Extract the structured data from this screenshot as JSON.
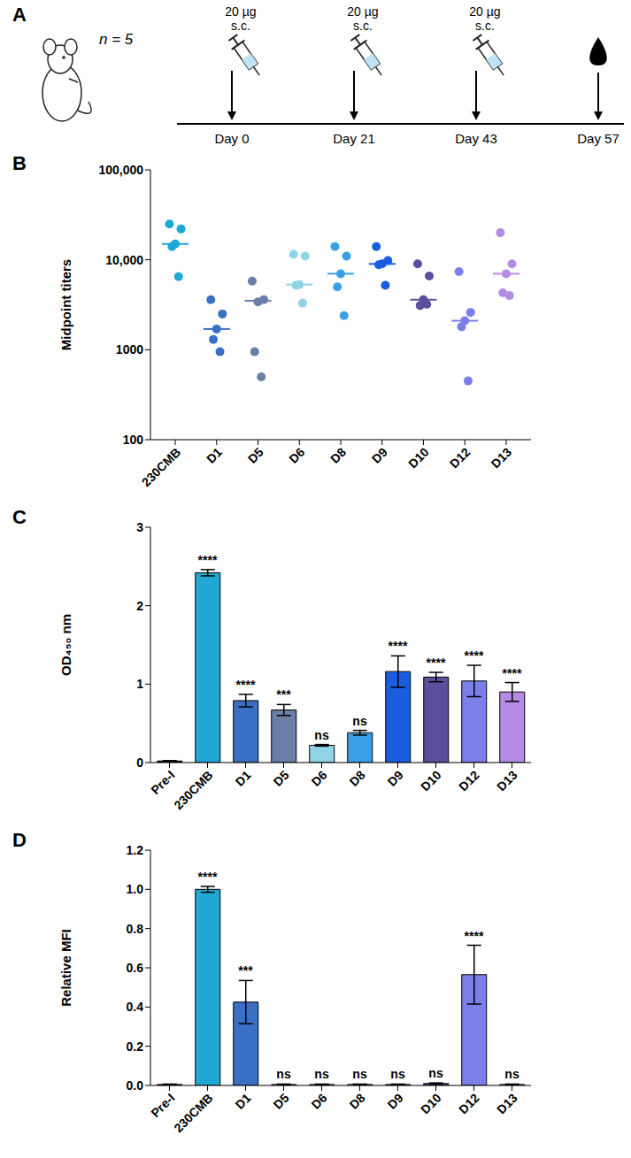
{
  "schematic": {
    "panel": "A",
    "subjects": "n = 5",
    "doses": [
      {
        "amount": "20 µg",
        "route": "s.c.",
        "day": "Day 0"
      },
      {
        "amount": "20 µg",
        "route": "s.c.",
        "day": "Day 21"
      },
      {
        "amount": "20 µg",
        "route": "s.c.",
        "day": "Day 43"
      }
    ],
    "sampling": "Day 57"
  },
  "chart_data": [
    {
      "panel": "B",
      "type": "scatter",
      "ylabel": "Midpoint titers",
      "log": "y",
      "grid": false,
      "marker": "circle",
      "categories": [
        "230CMB",
        "D1",
        "D5",
        "D6",
        "D8",
        "D9",
        "D10",
        "D12",
        "D13"
      ],
      "colors": [
        "#1fa8d6",
        "#3a6fc4",
        "#6a7fa8",
        "#8fd3e6",
        "#3aa0e6",
        "#1a5de0",
        "#5a4f9c",
        "#7b7fe8",
        "#b48ce6"
      ],
      "values": [
        [
          25000,
          22000,
          15000,
          14000,
          6500
        ],
        [
          3600,
          2500,
          1700,
          1300,
          950
        ],
        [
          5800,
          3600,
          3400,
          950,
          500
        ],
        [
          11500,
          11000,
          5300,
          5200,
          3300
        ],
        [
          14000,
          11000,
          7000,
          5000,
          2400
        ],
        [
          14000,
          9800,
          9000,
          8800,
          5200
        ],
        [
          9000,
          6600,
          3600,
          3100,
          3200
        ],
        [
          7400,
          2600,
          2100,
          1800,
          450
        ],
        [
          20000,
          9000,
          7000,
          4300,
          4000
        ]
      ],
      "medians": [
        15000,
        1700,
        3500,
        5300,
        7000,
        9000,
        3600,
        2100,
        7000
      ],
      "ylim": [
        100,
        100000
      ],
      "yticks": [
        100,
        1000,
        {
          "value": 10000,
          "label": "10,000"
        },
        {
          "value": 100000,
          "label": "100,000"
        }
      ]
    },
    {
      "panel": "C",
      "type": "bar",
      "ylabel": "OD₄₅₀ nm",
      "grid": false,
      "categories": [
        "Pre-I",
        "230CMB",
        "D1",
        "D5",
        "D6",
        "D8",
        "D9",
        "D10",
        "D12",
        "D13"
      ],
      "colors": [
        "#000000",
        "#1fa8d6",
        "#3a6fc4",
        "#6a7fa8",
        "#8fd3e6",
        "#3aa0e6",
        "#1a5de0",
        "#5a4f9c",
        "#7b7fe8",
        "#b48ce6"
      ],
      "values": [
        0.02,
        2.42,
        0.79,
        0.67,
        0.22,
        0.38,
        1.16,
        1.09,
        1.04,
        0.9
      ],
      "errors": [
        0.005,
        0.04,
        0.08,
        0.07,
        0.01,
        0.03,
        0.2,
        0.06,
        0.2,
        0.12
      ],
      "annotations": [
        null,
        "****",
        "****",
        "***",
        "ns",
        "ns",
        "****",
        "****",
        "****",
        "****"
      ],
      "ylim": [
        0,
        3
      ],
      "yticks": [
        0,
        1,
        2,
        3
      ]
    },
    {
      "panel": "D",
      "type": "bar",
      "ylabel": "Relative MFI",
      "grid": false,
      "categories": [
        "Pre-I",
        "230CMB",
        "D1",
        "D5",
        "D6",
        "D8",
        "D9",
        "D10",
        "D12",
        "D13"
      ],
      "colors": [
        "#000000",
        "#1fa8d6",
        "#3a6fc4",
        "#6a7fa8",
        "#8fd3e6",
        "#3aa0e6",
        "#1a5de0",
        "#5a4f9c",
        "#7b7fe8",
        "#b48ce6"
      ],
      "values": [
        0.005,
        1.0,
        0.425,
        0.005,
        0.005,
        0.005,
        0.005,
        0.01,
        0.565,
        0.005
      ],
      "errors": [
        0.002,
        0.015,
        0.11,
        0.002,
        0.002,
        0.002,
        0.002,
        0.003,
        0.15,
        0.002
      ],
      "annotations": [
        null,
        "****",
        "***",
        "ns",
        "ns",
        "ns",
        "ns",
        "ns",
        "****",
        "ns"
      ],
      "ylim": [
        0,
        1.2
      ],
      "yticks": [
        {
          "value": 0,
          "label": "0.0"
        },
        0.2,
        0.4,
        0.6,
        0.8,
        {
          "value": 1,
          "label": "1.0"
        },
        1.2
      ]
    }
  ]
}
